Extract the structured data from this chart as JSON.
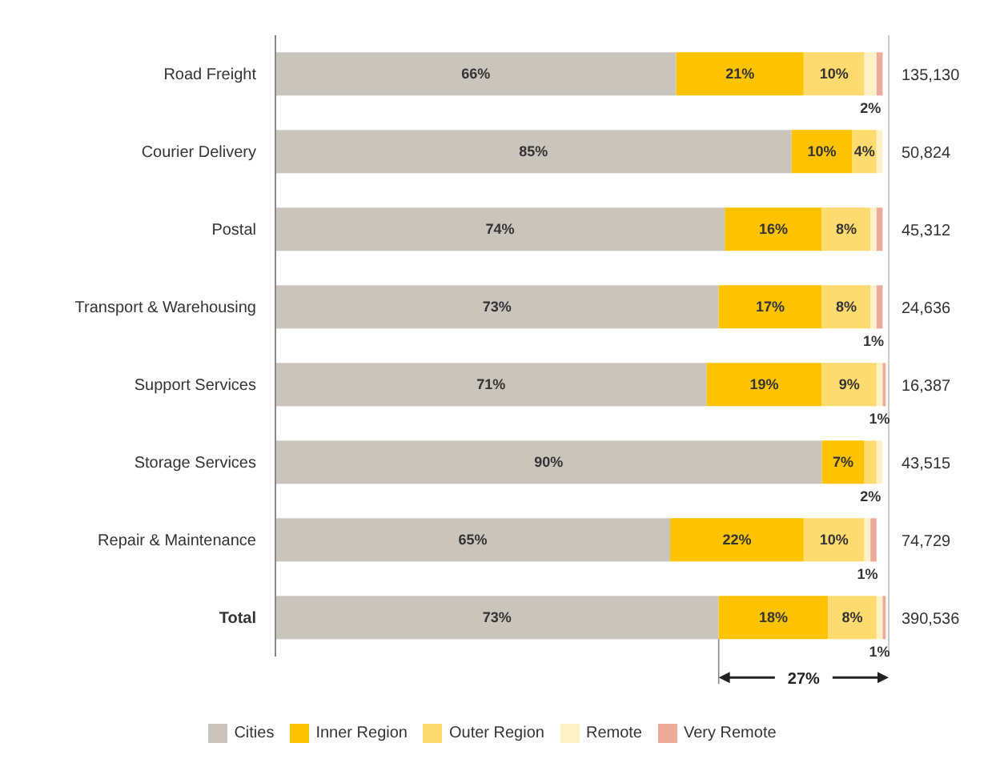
{
  "chart_data": {
    "type": "bar",
    "orientation": "horizontal",
    "stacked": true,
    "categories": [
      "Road Freight",
      "Courier Delivery",
      "Postal",
      "Transport & Warehousing",
      "Support Services",
      "Storage Services",
      "Repair & Maintenance",
      "Total"
    ],
    "series": [
      {
        "name": "Cities",
        "color": "#c9c5bd",
        "values": [
          66,
          85,
          74,
          73,
          71,
          90,
          65,
          73
        ],
        "value_labels": [
          "66%",
          "85%",
          "74%",
          "73%",
          "71%",
          "90%",
          "65%",
          "73%"
        ]
      },
      {
        "name": "Inner Region",
        "color": "#fdc300",
        "values": [
          21,
          10,
          16,
          17,
          19,
          7,
          22,
          18
        ],
        "value_labels": [
          "21%",
          "10%",
          "16%",
          "17%",
          "19%",
          "7%",
          "22%",
          "18%"
        ]
      },
      {
        "name": "Outer Region",
        "color": "#fedb6e",
        "values": [
          10,
          4,
          8,
          8,
          9,
          2,
          10,
          8
        ],
        "value_labels": [
          "10%",
          "4%",
          "8%",
          "8%",
          "9%",
          "2%",
          "10%",
          "8%"
        ]
      },
      {
        "name": "Remote",
        "color": "#fef1c8",
        "values": [
          2,
          1,
          1,
          1,
          1,
          1,
          1,
          1
        ],
        "value_labels": [
          "2%",
          null,
          null,
          "1%",
          "1%",
          null,
          "1%",
          "1%"
        ]
      },
      {
        "name": "Very Remote",
        "color": "#eeaa98",
        "values": [
          1,
          null,
          1,
          1,
          0.5,
          null,
          1,
          0.5
        ]
      }
    ],
    "xlim": [
      0,
      101
    ],
    "annotations": [
      "27%",
      "135,130",
      "50,824",
      "45,312",
      "24,636",
      "16,387",
      "43,515",
      "74,729",
      "390,536"
    ],
    "legend": "bottom"
  }
}
